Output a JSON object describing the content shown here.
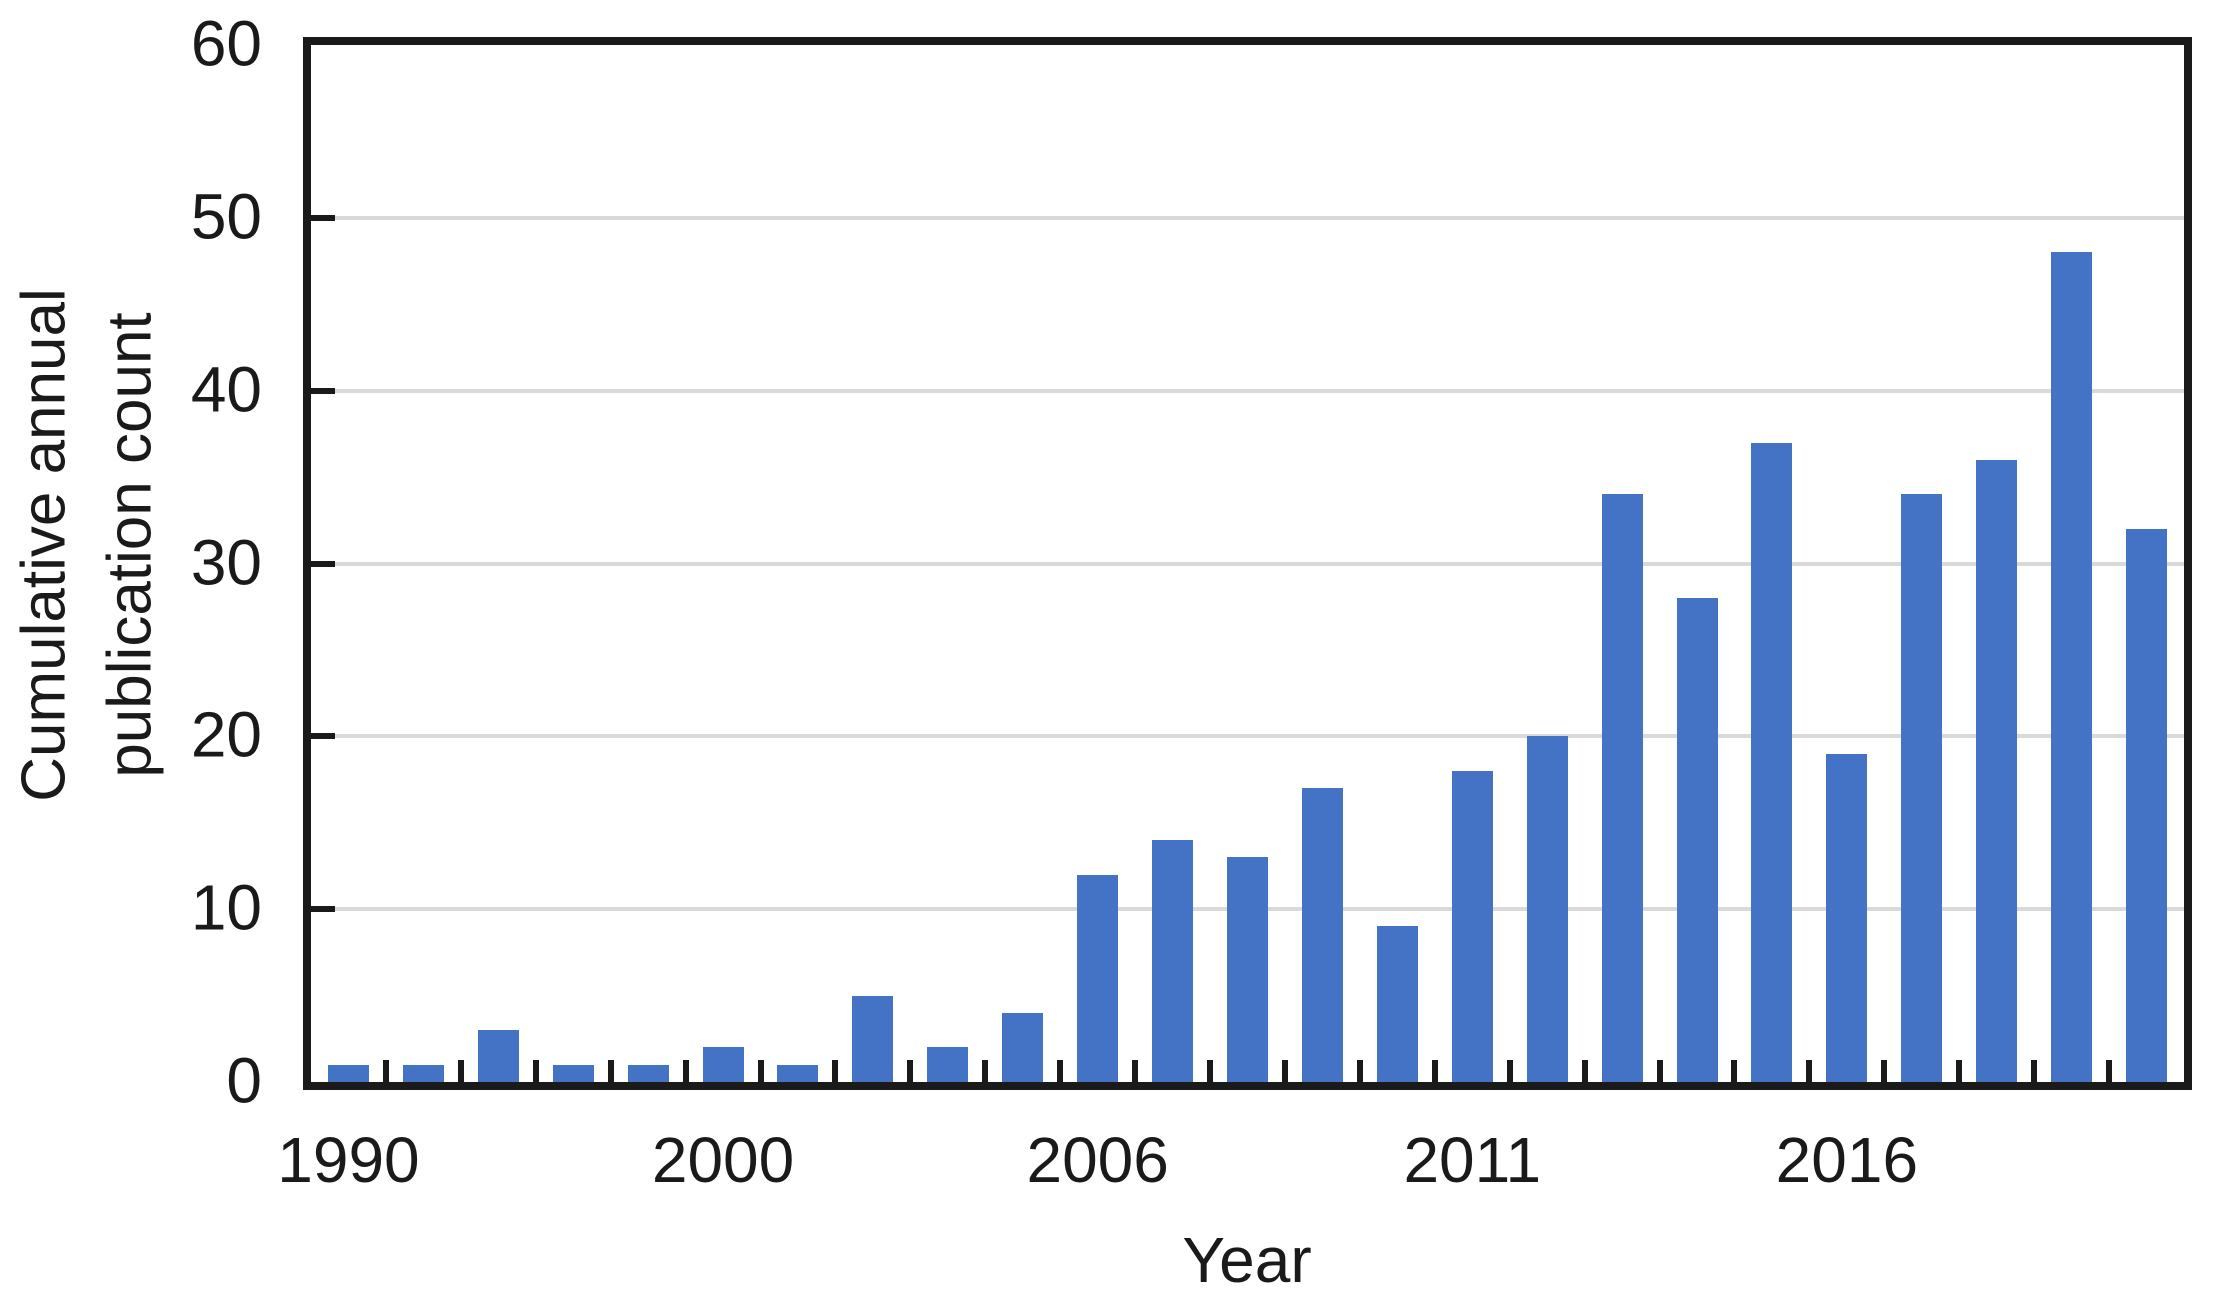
{
  "figure": {
    "background": "#ffffff",
    "text_color": "#1a1a1a"
  },
  "chart_data": {
    "type": "bar",
    "title": "",
    "xlabel": "Year",
    "ylabel": "Cumulative annual publication count",
    "ylabel_lines": [
      "Cumulative annual",
      "publication count"
    ],
    "values": [
      1,
      1,
      3,
      1,
      1,
      2,
      1,
      5,
      2,
      4,
      12,
      14,
      13,
      17,
      9,
      18,
      20,
      34,
      28,
      37,
      19,
      34,
      36,
      48,
      32
    ],
    "x_tick_labels": [
      {
        "index": 0,
        "label": "1990"
      },
      {
        "index": 5,
        "label": "2000"
      },
      {
        "index": 10,
        "label": "2006"
      },
      {
        "index": 15,
        "label": "2011"
      },
      {
        "index": 20,
        "label": "2016"
      }
    ],
    "y_ticks": [
      0,
      10,
      20,
      30,
      40,
      50,
      60
    ],
    "ylim": [
      0,
      60
    ],
    "grid": "horizontal",
    "legend": "none",
    "bar_color": "#4472C4",
    "gridline_color": "#d9d9d9",
    "axis_color": "#1a1a1a"
  }
}
